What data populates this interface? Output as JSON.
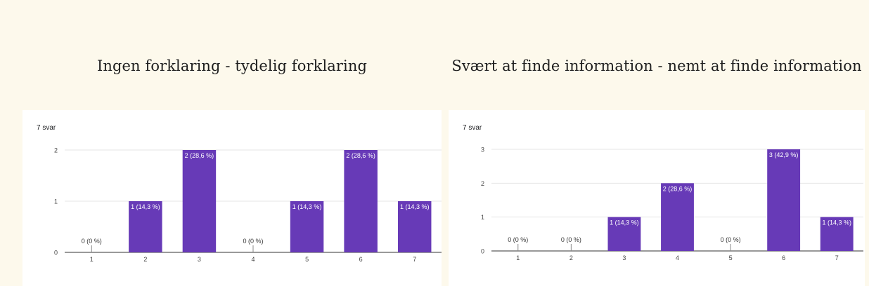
{
  "colors": {
    "bar": "#673ab7",
    "background": "#fdf9ec",
    "card": "#ffffff",
    "grid": "#e4e4e4"
  },
  "charts": [
    {
      "title": "Ingen forklaring - tydelig forklaring",
      "response_count": "7 svar"
    },
    {
      "title": "Svært at finde information - nemt at finde information",
      "response_count": "7 svar"
    }
  ],
  "chart_data": [
    {
      "type": "bar",
      "title": "Ingen forklaring - tydelig forklaring",
      "categories": [
        "1",
        "2",
        "3",
        "4",
        "5",
        "6",
        "7"
      ],
      "values": [
        0,
        1,
        2,
        0,
        1,
        2,
        1
      ],
      "data_labels": [
        "0 (0 %)",
        "1 (14,3 %)",
        "2 (28,6 %)",
        "0 (0 %)",
        "1 (14,3 %)",
        "2 (28,6 %)",
        "1 (14,3 %)"
      ],
      "ylim": [
        0,
        2
      ],
      "yticks": [
        0,
        1,
        2
      ],
      "grid": true,
      "xlabel": "",
      "ylabel": ""
    },
    {
      "type": "bar",
      "title": "Svært at finde information - nemt at finde information",
      "categories": [
        "1",
        "2",
        "3",
        "4",
        "5",
        "6",
        "7"
      ],
      "values": [
        0,
        0,
        1,
        2,
        0,
        3,
        1
      ],
      "data_labels": [
        "0 (0 %)",
        "0 (0 %)",
        "1 (14,3 %)",
        "2 (28,6 %)",
        "0 (0 %)",
        "3 (42,9 %)",
        "1 (14,3 %)"
      ],
      "ylim": [
        0,
        3
      ],
      "yticks": [
        0,
        1,
        2,
        3
      ],
      "grid": true,
      "xlabel": "",
      "ylabel": ""
    }
  ]
}
